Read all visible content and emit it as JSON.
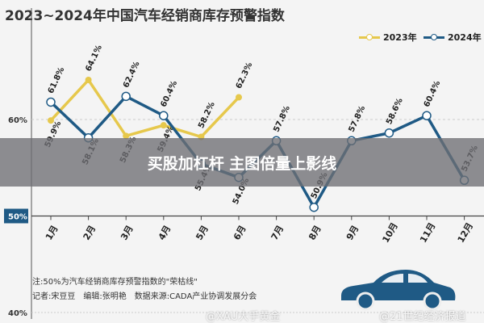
{
  "chart_data": {
    "type": "line",
    "title": "2023~2024年中国汽车经销商库存预警指数",
    "categories": [
      "1月",
      "2月",
      "3月",
      "4月",
      "5月",
      "6月",
      "7月",
      "8月",
      "9月",
      "10月",
      "11月",
      "12月"
    ],
    "series": [
      {
        "name": "2023年",
        "color": "#e6c84c",
        "values": [
          59.9,
          64.1,
          58.3,
          59.4,
          58.2,
          62.3,
          null,
          null,
          null,
          null,
          null,
          null
        ]
      },
      {
        "name": "2024年",
        "color": "#1f5a85",
        "values": [
          61.8,
          58.1,
          62.4,
          60.4,
          55.4,
          54.0,
          57.8,
          50.9,
          57.8,
          58.6,
          60.4,
          53.7
        ]
      }
    ],
    "yticks": [
      "60%",
      "50%",
      "40%"
    ],
    "ylim": [
      40,
      66
    ],
    "reference_line": 50,
    "legend_position": "top-right",
    "grid": false
  },
  "overlay_text": "买股加杠杆 主图倍量上影线",
  "notes": {
    "note": "注:50%为汽车经销商库存预警指数的\"荣枯线\"",
    "credits": "记者:宋豆豆　编辑:张明艳　数据来源:CADA产业协调发展分会"
  },
  "watermarks": [
    "@XAU大手黄金",
    "@21世纪经济报道"
  ]
}
